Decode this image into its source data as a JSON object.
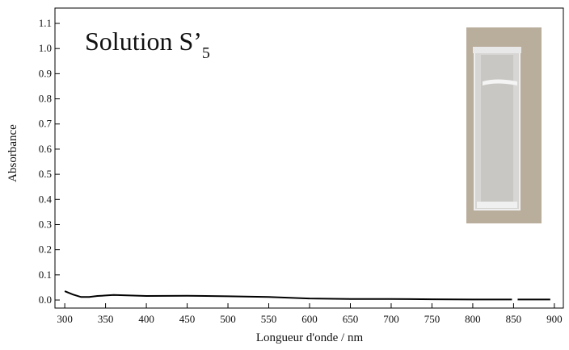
{
  "chart_data": {
    "type": "line",
    "title": "Solution S’",
    "title_subscript": "5",
    "x_label": "Longueur d'onde / nm",
    "y_label": "Absorbance",
    "xlim": [
      288,
      911
    ],
    "ylim": [
      -0.032,
      1.161
    ],
    "xticks": [
      300,
      350,
      400,
      450,
      500,
      550,
      600,
      650,
      700,
      750,
      800,
      850,
      900
    ],
    "yticks": [
      {
        "value": 0,
        "label": "0.0"
      },
      0.1,
      0.2,
      0.3,
      0.4,
      0.5,
      0.6,
      0.7,
      0.8,
      0.9,
      {
        "value": 1,
        "label": "1.0"
      },
      1.1
    ],
    "series": [
      {
        "color": "#000000",
        "x": [
          300,
          310,
          320,
          330,
          340,
          350,
          360,
          380,
          400,
          450,
          500,
          550,
          600,
          650,
          700,
          750,
          800,
          848,
          852,
          855,
          895
        ],
        "values": [
          0.035,
          0.022,
          0.012,
          0.012,
          0.016,
          0.018,
          0.02,
          0.018,
          0.016,
          0.017,
          0.015,
          0.012,
          0.006,
          0.004,
          0.004,
          0.003,
          0.002,
          0.002,
          null,
          0.002,
          0.002
        ]
      }
    ]
  }
}
